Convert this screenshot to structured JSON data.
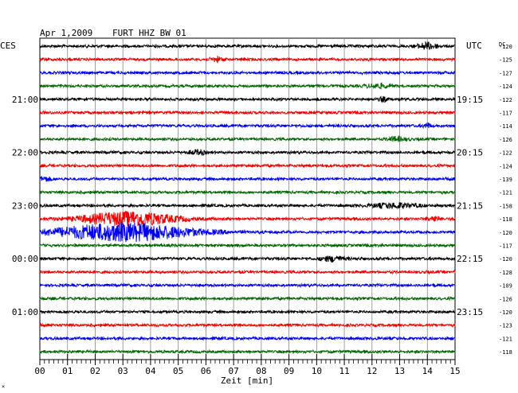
{
  "header": {
    "date": "Apr 1,2009",
    "station": "FURT HHZ BW 01",
    "left_tz": "CES",
    "right_tz": "UTC",
    "dc_label": "DC"
  },
  "footer": {
    "xlabel": "Zeit [min]",
    "corner_mark": "×"
  },
  "chart_data": {
    "type": "line",
    "title": "Apr 1,2009   FURT HHZ BW 01",
    "xlabel": "Zeit [min]",
    "xlim": [
      0,
      15
    ],
    "x_ticks": [
      "00",
      "01",
      "02",
      "03",
      "04",
      "05",
      "06",
      "07",
      "08",
      "09",
      "10",
      "11",
      "12",
      "13",
      "14",
      "15"
    ],
    "left_time_labels": [
      {
        "row": 4,
        "label": "21:00"
      },
      {
        "row": 8,
        "label": "22:00"
      },
      {
        "row": 12,
        "label": "23:00"
      },
      {
        "row": 16,
        "label": "00:00"
      },
      {
        "row": 20,
        "label": "01:00"
      }
    ],
    "right_time_labels": [
      {
        "row": 4,
        "label": "19:15"
      },
      {
        "row": 8,
        "label": "20:15"
      },
      {
        "row": 12,
        "label": "21:15"
      },
      {
        "row": 16,
        "label": "22:15"
      },
      {
        "row": 20,
        "label": "23:15"
      }
    ],
    "dc_offsets": [
      -120,
      -125,
      -127,
      -124,
      -122,
      -117,
      -114,
      -126,
      -122,
      -124,
      -139,
      -121,
      -158,
      -118,
      -120,
      -117,
      -120,
      -128,
      -109,
      -126,
      -120,
      -123,
      -121,
      -118
    ],
    "trace_colors": [
      "#000000",
      "#ee0000",
      "#0000ee",
      "#006600"
    ],
    "events": [
      {
        "row": 0,
        "center_min": 14.0,
        "width_min": 0.5,
        "amp": 4
      },
      {
        "row": 1,
        "center_min": 6.4,
        "width_min": 0.3,
        "amp": 3
      },
      {
        "row": 3,
        "center_min": 12.2,
        "width_min": 0.6,
        "amp": 2.5
      },
      {
        "row": 4,
        "center_min": 12.4,
        "width_min": 0.2,
        "amp": 2.5
      },
      {
        "row": 6,
        "center_min": 14.0,
        "width_min": 0.2,
        "amp": 3
      },
      {
        "row": 7,
        "center_min": 12.9,
        "width_min": 0.5,
        "amp": 2.5
      },
      {
        "row": 8,
        "center_min": 5.7,
        "width_min": 0.4,
        "amp": 3
      },
      {
        "row": 10,
        "center_min": 0.2,
        "width_min": 0.3,
        "amp": 2.5
      },
      {
        "row": 12,
        "center_min": 12.8,
        "width_min": 1.2,
        "amp": 3
      },
      {
        "row": 13,
        "center_min": 3.2,
        "width_min": 2.3,
        "amp": 9
      },
      {
        "row": 13,
        "center_min": 14.2,
        "width_min": 0.3,
        "amp": 3
      },
      {
        "row": 14,
        "center_min": 3.0,
        "width_min": 3.5,
        "amp": 11
      },
      {
        "row": 16,
        "center_min": 10.6,
        "width_min": 0.6,
        "amp": 3
      }
    ]
  }
}
